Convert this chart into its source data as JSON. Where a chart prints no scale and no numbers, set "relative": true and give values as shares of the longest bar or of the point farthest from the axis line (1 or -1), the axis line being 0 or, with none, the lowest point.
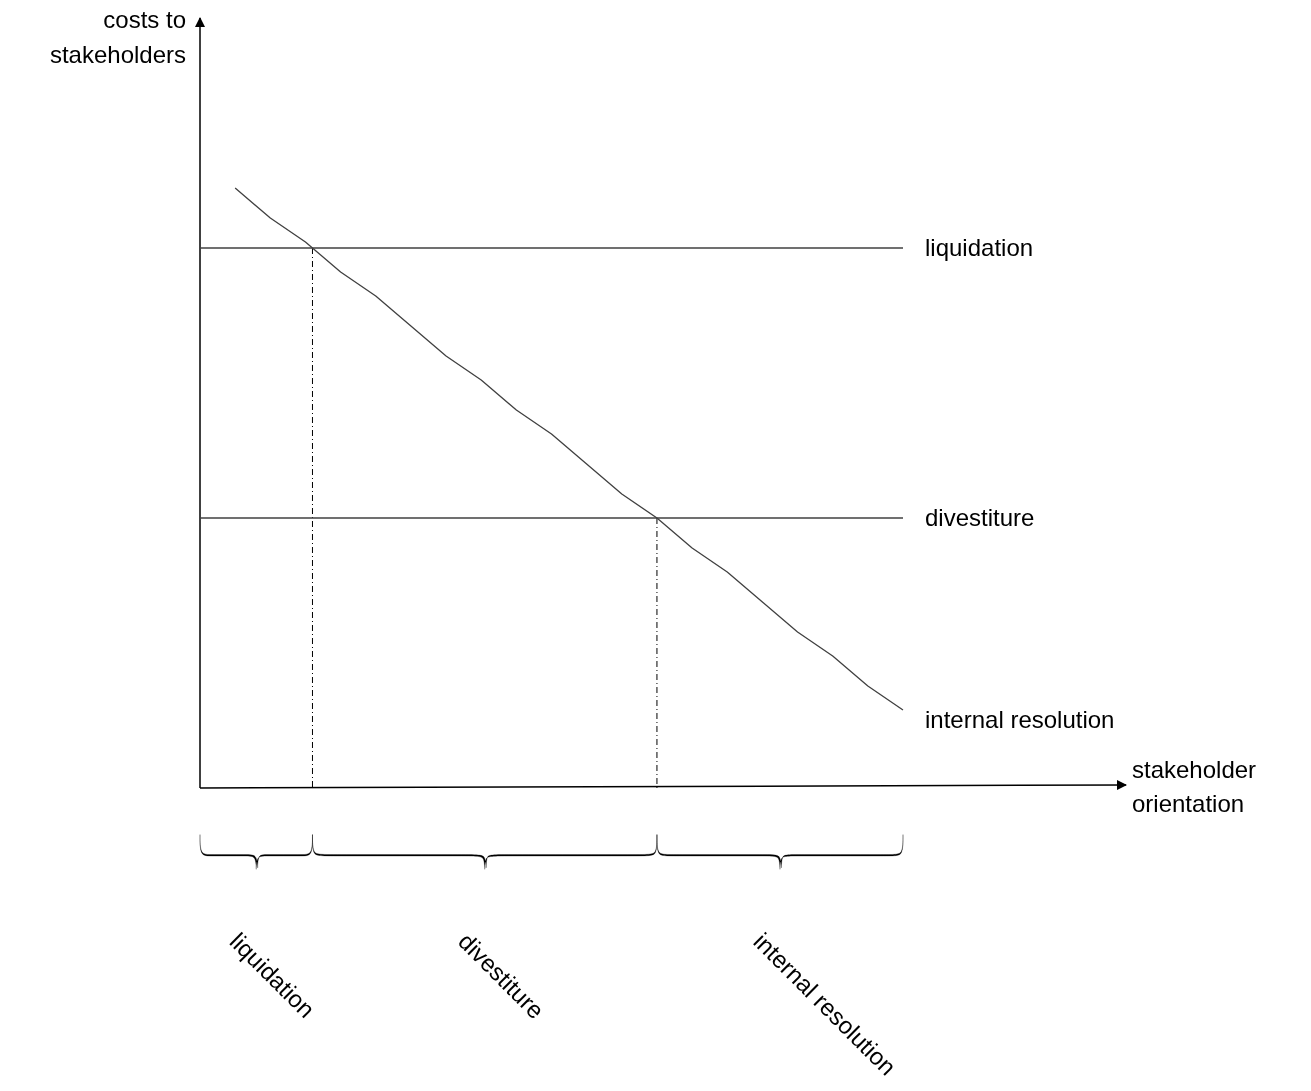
{
  "chart_data": {
    "type": "line",
    "relative": true,
    "categories": [
      null,
      null,
      null,
      null,
      null,
      null,
      null,
      null,
      null,
      null,
      null,
      null,
      null,
      null,
      null,
      null,
      null,
      null,
      null,
      null,
      null
    ],
    "series": [
      {
        "name": "liquidation",
        "color": "#404040",
        "values": [
          0.9,
          0.9,
          0.9,
          0.9,
          0.9,
          0.9,
          0.9,
          0.9,
          0.9,
          0.9,
          0.9,
          0.9,
          0.9,
          0.9,
          0.9,
          0.9,
          0.9,
          0.9,
          0.9,
          0.9,
          0.9
        ]
      },
      {
        "name": "divestiture",
        "color": "#404040",
        "values": [
          0.45,
          0.45,
          0.45,
          0.45,
          0.45,
          0.45,
          0.45,
          0.45,
          0.45,
          0.45,
          0.45,
          0.45,
          0.45,
          0.45,
          0.45,
          0.45,
          0.45,
          0.45,
          0.45,
          0.45,
          0.45
        ]
      },
      {
        "name": "internal resolution",
        "color": "#404040",
        "values": [
          null,
          1.0,
          0.95,
          0.91,
          0.86,
          0.82,
          0.77,
          0.72,
          0.68,
          0.63,
          0.59,
          0.54,
          0.49,
          0.45,
          0.4,
          0.36,
          0.31,
          0.26,
          0.22,
          0.17,
          0.13
        ]
      }
    ],
    "annotations": [
      "liquidation",
      "divestiture",
      "internal resolution",
      "costs to stakeholders",
      "stakeholder orientation"
    ],
    "grid": false,
    "legend": false,
    "marker": "none",
    "line_style": "solid"
  }
}
